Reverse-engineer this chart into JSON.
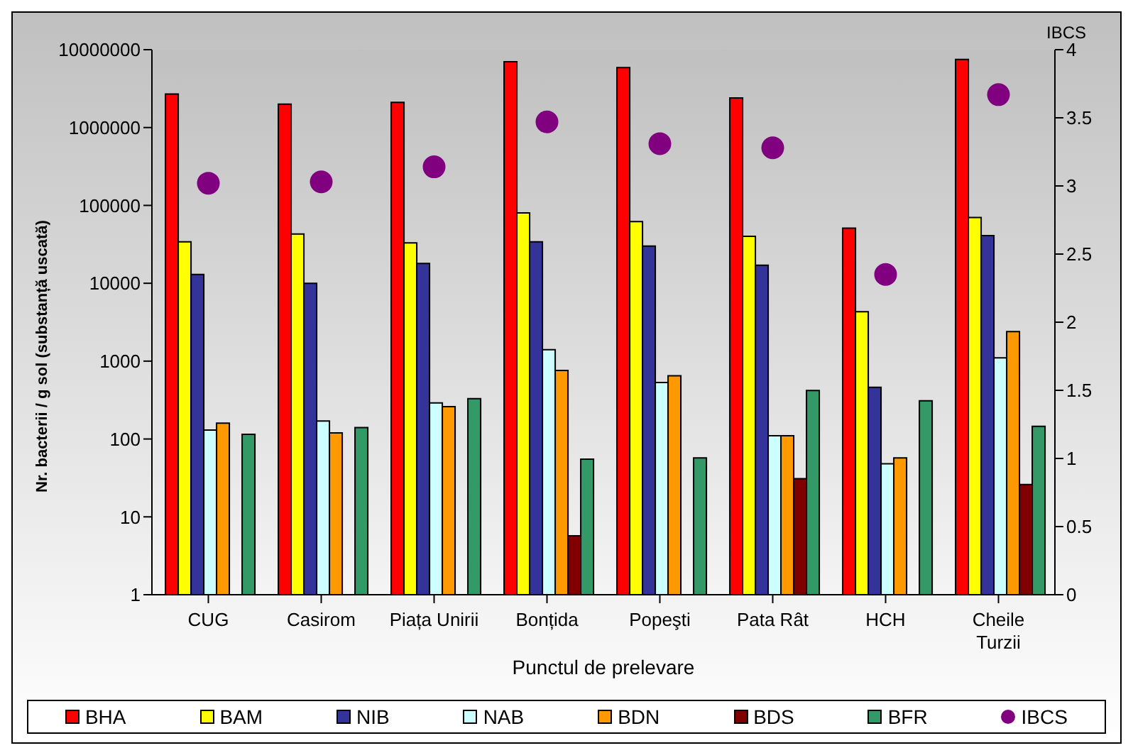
{
  "chart_data": {
    "type": "bar",
    "xlabel": "Punctul de prelevare",
    "ylabel": "Nr. bacterii / g sol (substanță uscată)",
    "y2label": "IBCS",
    "categories": [
      "CUG",
      "Casirom",
      "Piața Unirii",
      "Bonțida",
      "Popeşti",
      "Pata Rât",
      "HCH",
      "Cheile Turzii"
    ],
    "log": "y",
    "ylim": [
      1,
      10000000
    ],
    "yticks": [
      1,
      10,
      100,
      1000,
      10000,
      100000,
      1000000,
      10000000
    ],
    "y2lim": [
      0,
      4
    ],
    "y2ticks": [
      0,
      0.5,
      1,
      1.5,
      2,
      2.5,
      3,
      3.5,
      4
    ],
    "legend": "bottom",
    "series": [
      {
        "name": "BHA",
        "color": "#ff0000",
        "values": [
          2700000,
          2000000,
          2100000,
          7000000,
          5900000,
          2400000,
          51000,
          7500000
        ]
      },
      {
        "name": "BAM",
        "color": "#ffff00",
        "values": [
          34000,
          43000,
          33000,
          80000,
          62000,
          40000,
          4300,
          70000
        ]
      },
      {
        "name": "NIB",
        "color": "#333399",
        "values": [
          13000,
          10000,
          18000,
          34000,
          30000,
          17000,
          460,
          41000
        ]
      },
      {
        "name": "NAB",
        "color": "#ccffff",
        "values": [
          130,
          170,
          290,
          1400,
          530,
          110,
          48,
          1100
        ]
      },
      {
        "name": "BDN",
        "color": "#ff9900",
        "values": [
          160,
          120,
          260,
          760,
          650,
          110,
          57,
          2400
        ]
      },
      {
        "name": "BDS",
        "color": "#800000",
        "values": [
          null,
          null,
          null,
          5.7,
          null,
          31,
          null,
          26
        ]
      },
      {
        "name": "BFR",
        "color": "#339966",
        "values": [
          115,
          140,
          330,
          55,
          57,
          420,
          310,
          145
        ]
      },
      {
        "name": "IBCS",
        "type": "scatter",
        "axis": "y2",
        "marker": "circle",
        "color": "#800080",
        "values": [
          3.02,
          3.03,
          3.14,
          3.47,
          3.31,
          3.28,
          2.35,
          3.67
        ]
      }
    ]
  }
}
